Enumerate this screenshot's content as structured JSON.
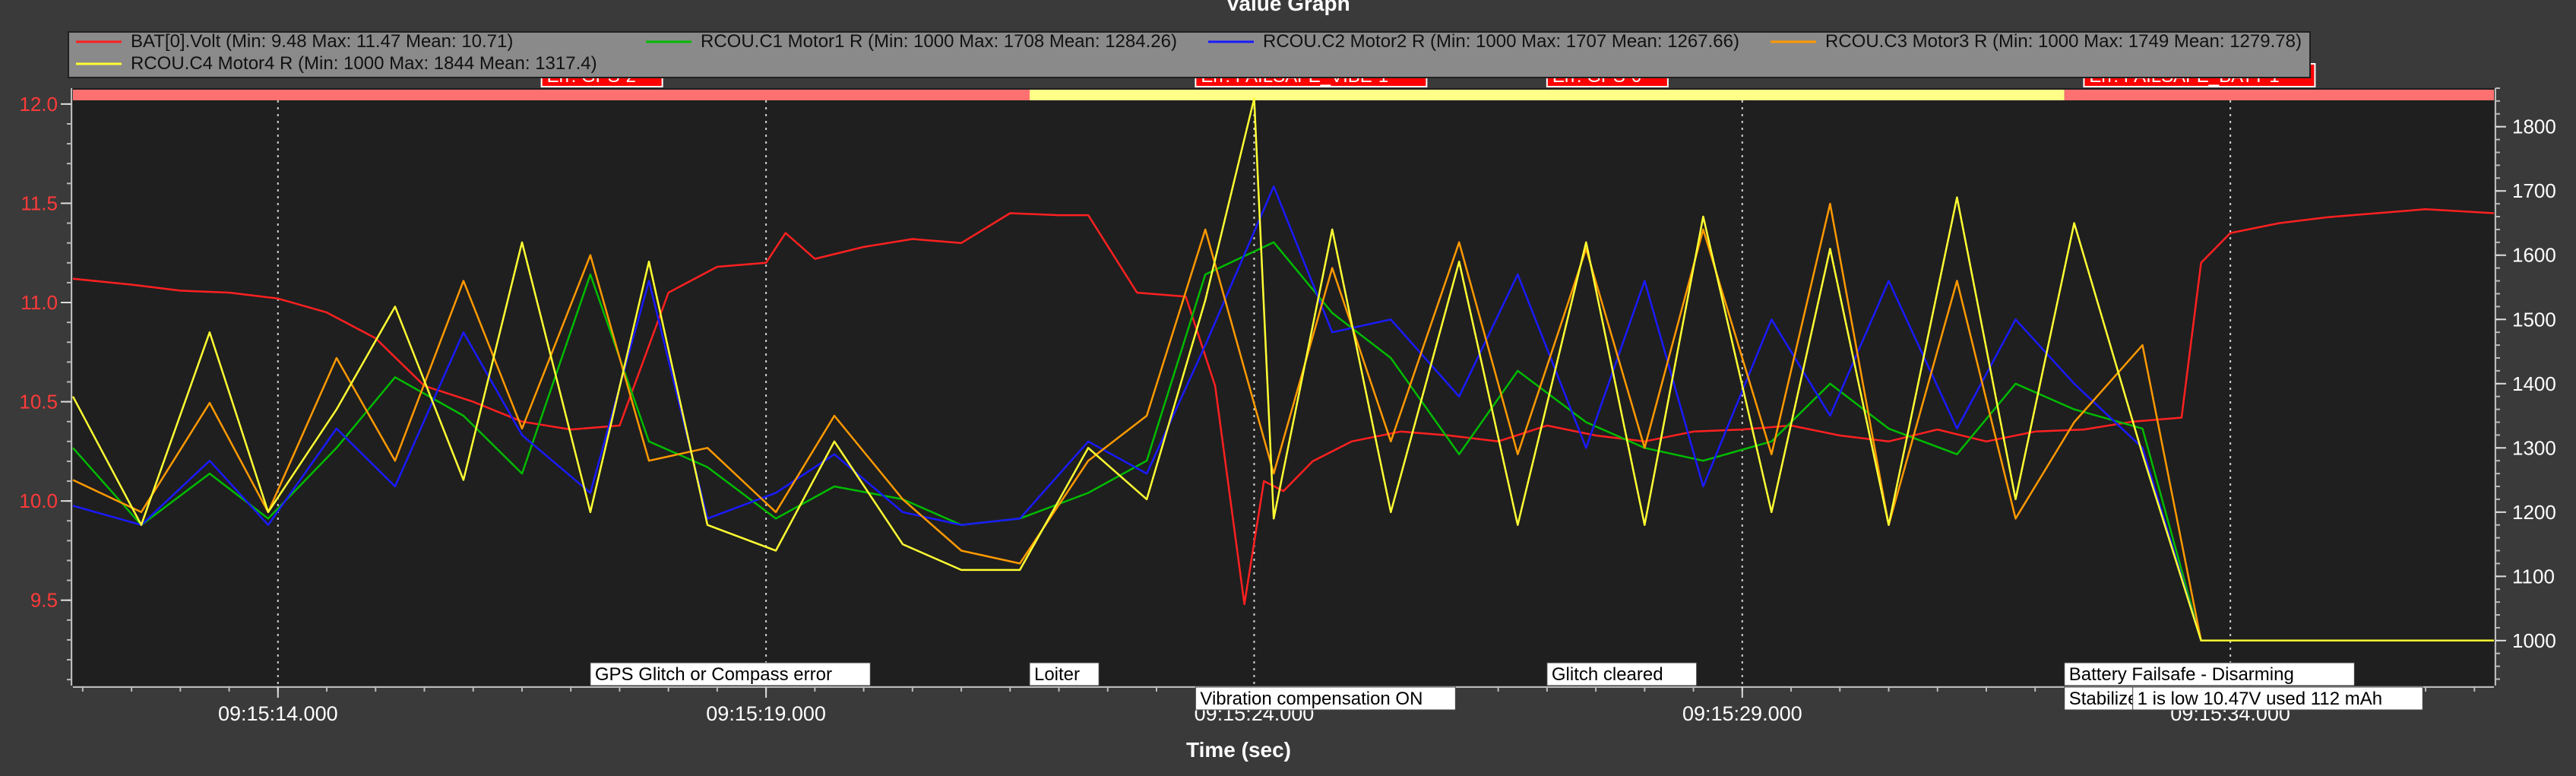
{
  "window": {
    "title": "Value Graph"
  },
  "chart_data": {
    "type": "line",
    "title": "Value Graph",
    "xlabel": "Time (sec)",
    "x_range_seconds_of_day": [
      33311.9,
      33336.7
    ],
    "x_ticks": [
      {
        "t": 33314,
        "label": "09:15:14.000"
      },
      {
        "t": 33319,
        "label": "09:15:19.000"
      },
      {
        "t": 33324,
        "label": "09:15:24.000"
      },
      {
        "t": 33329,
        "label": "09:15:29.000"
      },
      {
        "t": 33334,
        "label": "09:15:34.000"
      }
    ],
    "y_left": {
      "range": [
        9.07,
        12.08
      ],
      "ticks": [
        "9.5",
        "10.0",
        "10.5",
        "11.0",
        "11.5",
        "12.0"
      ],
      "tick_values": [
        9.5,
        10.0,
        10.5,
        11.0,
        11.5,
        12.0
      ]
    },
    "y_right": {
      "range": [
        930,
        1860
      ],
      "ticks": [
        "1000",
        "1100",
        "1200",
        "1300",
        "1400",
        "1500",
        "1600",
        "1700",
        "1800"
      ],
      "tick_values": [
        1000,
        1100,
        1200,
        1300,
        1400,
        1500,
        1600,
        1700,
        1800
      ]
    },
    "grid": true,
    "legend_position": "top",
    "series": [
      {
        "name": "BAT[0].Volt",
        "legend": "BAT[0].Volt  (Min: 9.48 Max: 11.47 Mean: 10.71)",
        "axis": "left",
        "color": "#ff2020",
        "x": [
          33311.9,
          33312.5,
          33313.0,
          33313.5,
          33314.0,
          33314.5,
          33315.0,
          33315.5,
          33316.0,
          33316.5,
          33317.0,
          33317.5,
          33318.0,
          33318.5,
          33319.0,
          33319.2,
          33319.5,
          33320.0,
          33320.5,
          33321.0,
          33321.5,
          33322.0,
          33322.3,
          33322.8,
          33323.3,
          33323.6,
          33323.9,
          33324.1,
          33324.3,
          33324.6,
          33325.0,
          33325.5,
          33326.0,
          33326.5,
          33327.0,
          33327.5,
          33328.0,
          33328.5,
          33329.0,
          33329.5,
          33330.0,
          33330.5,
          33331.0,
          33331.5,
          33332.0,
          33332.5,
          33333.0,
          33333.5,
          33333.7,
          33334.0,
          33334.5,
          33335.0,
          33335.5,
          33336.0,
          33336.7
        ],
        "y": [
          11.12,
          11.09,
          11.06,
          11.05,
          11.02,
          10.95,
          10.82,
          10.58,
          10.5,
          10.4,
          10.36,
          10.38,
          11.05,
          11.18,
          11.2,
          11.35,
          11.22,
          11.28,
          11.32,
          11.3,
          11.45,
          11.44,
          11.44,
          11.05,
          11.03,
          10.58,
          9.48,
          10.1,
          10.05,
          10.2,
          10.3,
          10.35,
          10.33,
          10.3,
          10.38,
          10.33,
          10.3,
          10.35,
          10.36,
          10.38,
          10.33,
          10.3,
          10.36,
          10.3,
          10.35,
          10.36,
          10.4,
          10.42,
          11.2,
          11.35,
          11.4,
          11.43,
          11.45,
          11.47,
          11.45
        ]
      },
      {
        "name": "RCOU.C1 Motor1 R",
        "legend": "RCOU.C1 Motor1 R (Min: 1000 Max: 1708 Mean: 1284.26)",
        "axis": "right",
        "color": "#00bb00",
        "x": [
          33311.9,
          33312.6,
          33313.3,
          33313.9,
          33314.6,
          33315.2,
          33315.9,
          33316.5,
          33317.2,
          33317.8,
          33318.4,
          33319.1,
          33319.7,
          33320.4,
          33321.0,
          33321.6,
          33322.3,
          33322.9,
          33323.5,
          33324.2,
          33324.8,
          33325.4,
          33326.1,
          33326.7,
          33327.4,
          33328.0,
          33328.6,
          33329.3,
          33329.9,
          33330.5,
          33331.2,
          33331.8,
          33332.4,
          33333.1,
          33333.7,
          33334.4,
          33335.0,
          33335.7,
          33336.3,
          33336.7
        ],
        "y": [
          1300,
          1180,
          1260,
          1190,
          1300,
          1410,
          1350,
          1260,
          1570,
          1310,
          1270,
          1190,
          1240,
          1220,
          1180,
          1190,
          1230,
          1280,
          1570,
          1620,
          1510,
          1440,
          1290,
          1420,
          1340,
          1300,
          1280,
          1310,
          1400,
          1330,
          1290,
          1400,
          1360,
          1330,
          1000,
          1000,
          1000,
          1000,
          1000,
          1000
        ]
      },
      {
        "name": "RCOU.C2 Motor2 R",
        "legend": "RCOU.C2 Motor2 R (Min: 1000 Max: 1707 Mean: 1267.66)",
        "axis": "right",
        "color": "#1a1aff",
        "x": [
          33311.9,
          33312.6,
          33313.3,
          33313.9,
          33314.6,
          33315.2,
          33315.9,
          33316.5,
          33317.2,
          33317.8,
          33318.4,
          33319.1,
          33319.7,
          33320.4,
          33321.0,
          33321.6,
          33322.3,
          33322.9,
          33323.5,
          33324.2,
          33324.8,
          33325.4,
          33326.1,
          33326.7,
          33327.4,
          33328.0,
          33328.6,
          33329.3,
          33329.9,
          33330.5,
          33331.2,
          33331.8,
          33332.4,
          33333.1,
          33333.7,
          33334.4,
          33335.0,
          33335.7,
          33336.3,
          33336.7
        ],
        "y": [
          1210,
          1180,
          1280,
          1180,
          1330,
          1240,
          1480,
          1320,
          1230,
          1560,
          1190,
          1230,
          1290,
          1200,
          1180,
          1190,
          1310,
          1260,
          1460,
          1707,
          1480,
          1500,
          1380,
          1570,
          1300,
          1560,
          1240,
          1500,
          1350,
          1560,
          1330,
          1500,
          1400,
          1300,
          1000,
          1000,
          1000,
          1000,
          1000,
          1000
        ]
      },
      {
        "name": "RCOU.C3 Motor3 R",
        "legend": "RCOU.C3 Motor3 R (Min: 1000 Max: 1749 Mean: 1279.78)",
        "axis": "right",
        "color": "#ff9900",
        "x": [
          33311.9,
          33312.6,
          33313.3,
          33313.9,
          33314.6,
          33315.2,
          33315.9,
          33316.5,
          33317.2,
          33317.8,
          33318.4,
          33319.1,
          33319.7,
          33320.4,
          33321.0,
          33321.6,
          33322.3,
          33322.9,
          33323.5,
          33324.2,
          33324.8,
          33325.4,
          33326.1,
          33326.7,
          33327.4,
          33328.0,
          33328.6,
          33329.3,
          33329.9,
          33330.5,
          33331.2,
          33331.8,
          33332.4,
          33333.1,
          33333.7,
          33334.4,
          33335.0,
          33335.7,
          33336.3,
          33336.7
        ],
        "y": [
          1250,
          1200,
          1370,
          1200,
          1440,
          1280,
          1560,
          1330,
          1600,
          1280,
          1300,
          1200,
          1350,
          1220,
          1140,
          1120,
          1280,
          1350,
          1640,
          1260,
          1580,
          1310,
          1620,
          1290,
          1610,
          1300,
          1640,
          1290,
          1680,
          1180,
          1560,
          1190,
          1340,
          1460,
          1000,
          1000,
          1000,
          1000,
          1000,
          1000
        ]
      },
      {
        "name": "RCOU.C4 Motor4 R",
        "legend": "RCOU.C4 Motor4 R (Min: 1000 Max: 1844 Mean: 1317.4)",
        "axis": "right",
        "color": "#ffff33",
        "x": [
          33311.9,
          33312.6,
          33313.3,
          33313.9,
          33314.6,
          33315.2,
          33315.9,
          33316.5,
          33317.2,
          33317.8,
          33318.4,
          33319.1,
          33319.7,
          33320.4,
          33321.0,
          33321.6,
          33322.3,
          33322.9,
          33323.5,
          33324.0,
          33324.2,
          33324.8,
          33325.4,
          33326.1,
          33326.7,
          33327.4,
          33328.0,
          33328.6,
          33329.3,
          33329.9,
          33330.5,
          33331.2,
          33331.8,
          33332.4,
          33333.1,
          33333.7,
          33334.4,
          33335.0,
          33335.7,
          33336.3,
          33336.7
        ],
        "y": [
          1380,
          1180,
          1480,
          1200,
          1360,
          1520,
          1250,
          1620,
          1200,
          1590,
          1180,
          1140,
          1310,
          1150,
          1110,
          1110,
          1300,
          1220,
          1530,
          1844,
          1190,
          1640,
          1200,
          1590,
          1180,
          1620,
          1180,
          1660,
          1200,
          1610,
          1180,
          1690,
          1220,
          1650,
          1290,
          1000,
          1000,
          1000,
          1000,
          1000,
          1000
        ]
      }
    ],
    "mode_bands": [
      {
        "from": 33311.9,
        "to": 33321.7,
        "color": "#ff7070"
      },
      {
        "from": 33321.7,
        "to": 33332.3,
        "color": "#ffff88"
      },
      {
        "from": 33332.3,
        "to": 33336.7,
        "color": "#ff7070"
      }
    ],
    "error_markers": [
      {
        "t": 33316.7,
        "label": "Err: GPS-2"
      },
      {
        "t": 33323.4,
        "label": "Err: FAILSAFE_VIBE-1"
      },
      {
        "t": 33327.0,
        "label": "Err: GPS-0"
      },
      {
        "t": 33332.5,
        "label": "Err: FAILSAFE_BATT-1"
      }
    ],
    "event_lines": [
      33314.0,
      33319.0,
      33324.0,
      33329.0,
      33334.0
    ],
    "annotations": [
      {
        "t": 33317.2,
        "row": 1,
        "label": "GPS Glitch or Compass error"
      },
      {
        "t": 33321.7,
        "row": 1,
        "label": "Loiter"
      },
      {
        "t": 33323.4,
        "row": 2,
        "label": "Vibration compensation ON"
      },
      {
        "t": 33327.0,
        "row": 1,
        "label": "Glitch cleared"
      },
      {
        "t": 33332.3,
        "row": 1,
        "label": "Battery Failsafe - Disarming"
      },
      {
        "t": 33332.3,
        "row": 3,
        "label": "Stabilize"
      },
      {
        "t": 33333.0,
        "row": 3,
        "label": "1 is low 10.47V used 112 mAh"
      }
    ]
  }
}
